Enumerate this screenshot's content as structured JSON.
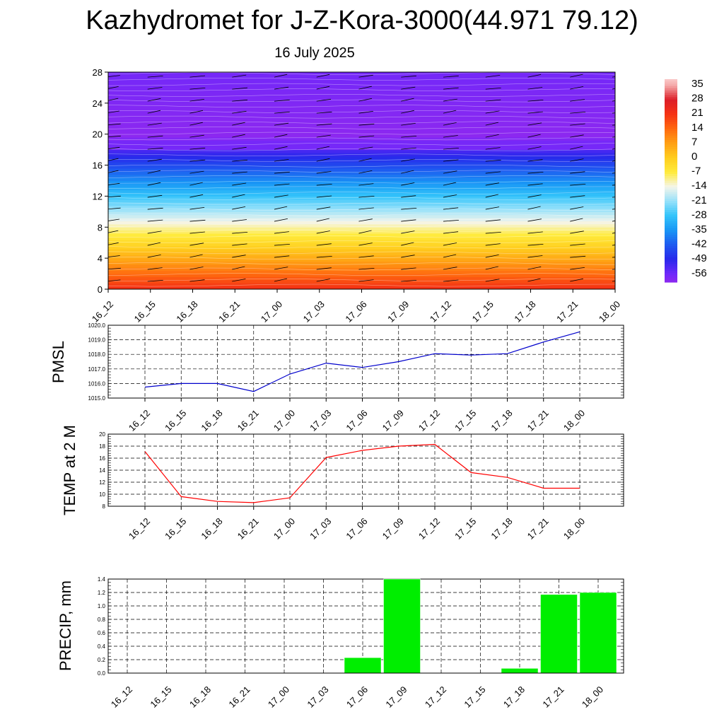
{
  "title": "Kazhydromet for J-Z-Kora-3000(44.971 79.12)",
  "subtitle": "16 July 2025",
  "times": [
    "16_12",
    "16_15",
    "16_18",
    "16_21",
    "17_00",
    "17_03",
    "17_06",
    "17_09",
    "17_12",
    "17_15",
    "17_18",
    "17_21",
    "18_00"
  ],
  "chart_data": [
    {
      "type": "heatmap",
      "name": "temperature-wind-cross-section",
      "y_ticks": [
        0,
        4,
        8,
        12,
        16,
        20,
        24,
        28
      ],
      "ylim": [
        0,
        28
      ],
      "colorbar_labels": [
        "35",
        "28",
        "21",
        "14",
        "7",
        "0",
        "-7",
        "-14",
        "-21",
        "-28",
        "-35",
        "-42",
        "-49",
        "-56"
      ],
      "colorbar_range": [
        -60,
        38
      ],
      "surface_temp": 22,
      "lapse_per_unit": -5.6,
      "tropopause_height": 20,
      "stratosphere_temp": -60
    },
    {
      "type": "line",
      "name": "pmsl",
      "ylabel": "PMSL",
      "x": [
        "16_12",
        "16_15",
        "16_18",
        "16_21",
        "17_00",
        "17_03",
        "17_06",
        "17_09",
        "17_12",
        "17_15",
        "17_18",
        "17_21",
        "18_00"
      ],
      "values": [
        1015.75,
        1016.0,
        1016.0,
        1015.45,
        1016.65,
        1017.4,
        1017.1,
        1017.5,
        1018.05,
        1017.95,
        1018.05,
        1018.85,
        1019.55
      ],
      "ylim": [
        1015.0,
        1020.0
      ],
      "y_ticks": [
        "1015.0",
        "1016.0",
        "1017.0",
        "1018.0",
        "1019.0",
        "1020.0"
      ],
      "color": "#0000cc"
    },
    {
      "type": "line",
      "name": "temp-2m",
      "ylabel": "TEMP at 2 M",
      "x": [
        "16_12",
        "16_15",
        "16_18",
        "16_21",
        "17_00",
        "17_03",
        "17_06",
        "17_09",
        "17_12",
        "17_15",
        "17_18",
        "17_21",
        "18_00"
      ],
      "values": [
        17.1,
        9.6,
        8.8,
        8.6,
        9.4,
        16.1,
        17.3,
        18.0,
        18.3,
        13.6,
        12.8,
        11.0,
        11.0
      ],
      "ylim": [
        8,
        20
      ],
      "y_ticks": [
        "8",
        "10",
        "12",
        "14",
        "16",
        "18",
        "20"
      ],
      "color": "#ff0000"
    },
    {
      "type": "bar",
      "name": "precip",
      "ylabel": "PRECIP, mm",
      "categories": [
        "16_12",
        "16_15",
        "16_18",
        "16_21",
        "17_00",
        "17_03",
        "17_06",
        "17_09",
        "17_12",
        "17_15",
        "17_18",
        "17_21",
        "18_00"
      ],
      "values": [
        0,
        0,
        0,
        0,
        0,
        0,
        0.23,
        1.4,
        0,
        0,
        0.07,
        1.17,
        1.2
      ],
      "ylim": [
        0,
        1.4
      ],
      "y_ticks": [
        "0.0",
        "0.2",
        "0.4",
        "0.6",
        "0.8",
        "1.0",
        "1.2",
        "1.4"
      ],
      "color": "#00ee00"
    }
  ]
}
